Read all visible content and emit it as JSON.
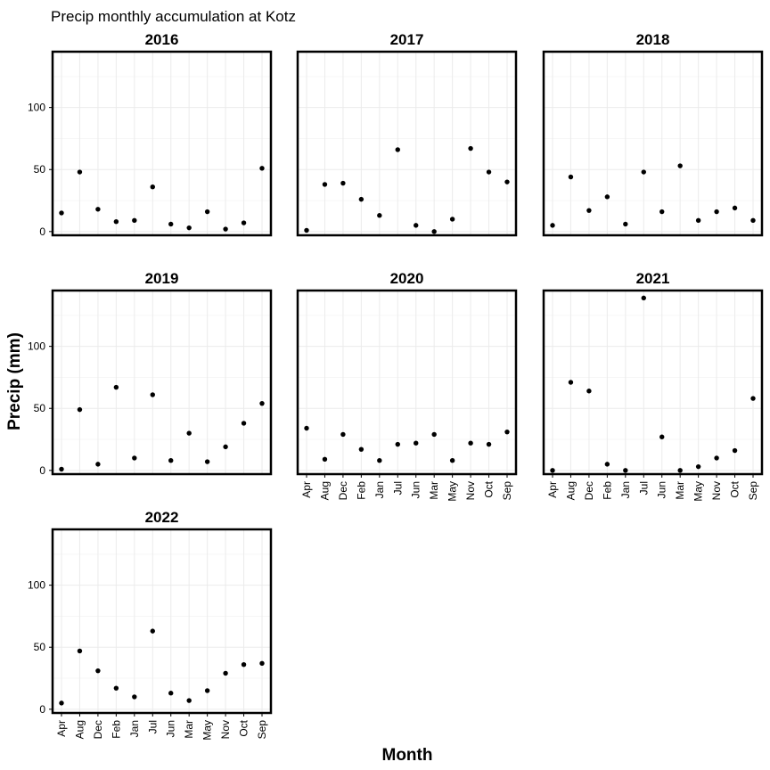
{
  "chart_data": {
    "type": "scatter",
    "title": "Precip monthly accumulation at Kotz",
    "xlabel": "Month",
    "ylabel": "Precip (mm)",
    "ylim": [
      -3,
      145
    ],
    "yticks": [
      0,
      50,
      100
    ],
    "grid": true,
    "categories": [
      "Apr",
      "Aug",
      "Dec",
      "Feb",
      "Jan",
      "Jul",
      "Jun",
      "Mar",
      "May",
      "Nov",
      "Oct",
      "Sep"
    ],
    "panels": [
      {
        "name": "2016",
        "values": [
          15,
          48,
          18,
          8,
          9,
          36,
          6,
          3,
          16,
          2,
          7,
          51
        ]
      },
      {
        "name": "2017",
        "values": [
          1,
          38,
          39,
          26,
          13,
          66,
          5,
          0,
          10,
          67,
          48,
          40
        ]
      },
      {
        "name": "2018",
        "values": [
          5,
          44,
          17,
          28,
          6,
          48,
          16,
          53,
          9,
          16,
          19,
          9
        ]
      },
      {
        "name": "2019",
        "values": [
          1,
          49,
          5,
          67,
          10,
          61,
          8,
          30,
          7,
          19,
          38,
          54
        ]
      },
      {
        "name": "2020",
        "values": [
          34,
          9,
          29,
          17,
          8,
          21,
          22,
          29,
          8,
          22,
          21,
          31
        ]
      },
      {
        "name": "2021",
        "values": [
          0,
          71,
          64,
          5,
          0,
          139,
          27,
          0,
          3,
          10,
          16,
          58
        ]
      },
      {
        "name": "2022",
        "values": [
          5,
          47,
          31,
          17,
          10,
          63,
          13,
          7,
          15,
          29,
          36,
          37
        ]
      }
    ]
  }
}
